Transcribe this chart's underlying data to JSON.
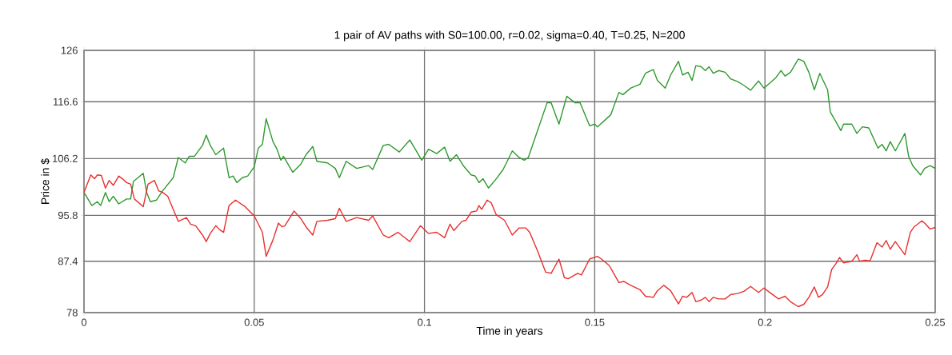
{
  "chart_data": {
    "type": "line",
    "title": "1 pair of AV paths with S0=100.00, r=0.02, sigma=0.40, T=0.25, N=200",
    "xlabel": "Time in years",
    "ylabel": "Price in $",
    "xlim": [
      0,
      0.25
    ],
    "ylim": [
      78,
      126
    ],
    "xticks": [
      0,
      0.05,
      0.1,
      0.15,
      0.2,
      0.25
    ],
    "yticks": [
      78,
      87.4,
      95.8,
      106.2,
      116.6,
      126
    ],
    "grid": true,
    "marker": "none",
    "line_style": "solid",
    "series": [
      {
        "color": "#2e9a2e",
        "x": [
          0,
          0.0023,
          0.0039,
          0.0049,
          0.0063,
          0.0074,
          0.0086,
          0.0102,
          0.0125,
          0.0137,
          0.0145,
          0.0174,
          0.0184,
          0.0195,
          0.0213,
          0.0231,
          0.0262,
          0.0277,
          0.0297,
          0.0309,
          0.0324,
          0.0348,
          0.0359,
          0.0371,
          0.0387,
          0.041,
          0.0426,
          0.0438,
          0.0449,
          0.0465,
          0.0481,
          0.05,
          0.0512,
          0.0524,
          0.0535,
          0.0555,
          0.0567,
          0.0578,
          0.0586,
          0.0613,
          0.0637,
          0.0652,
          0.0672,
          0.0684,
          0.0715,
          0.0738,
          0.075,
          0.077,
          0.0801,
          0.0836,
          0.0848,
          0.0879,
          0.0895,
          0.0926,
          0.0957,
          0.0973,
          0.0992,
          0.1012,
          0.1036,
          0.1059,
          0.1075,
          0.1094,
          0.1114,
          0.1137,
          0.1149,
          0.116,
          0.1172,
          0.1188,
          0.1211,
          0.1231,
          0.1258,
          0.1278,
          0.1293,
          0.1305,
          0.1332,
          0.136,
          0.1372,
          0.1395,
          0.1418,
          0.1442,
          0.1457,
          0.1485,
          0.15,
          0.1508,
          0.1547,
          0.1571,
          0.1583,
          0.1606,
          0.1633,
          0.1649,
          0.1672,
          0.1684,
          0.1707,
          0.1723,
          0.1746,
          0.1758,
          0.1774,
          0.1786,
          0.1797,
          0.1813,
          0.1825,
          0.1836,
          0.1848,
          0.1864,
          0.1883,
          0.1899,
          0.1919,
          0.1938,
          0.1958,
          0.1981,
          0.1997,
          0.2016,
          0.2032,
          0.2047,
          0.2059,
          0.2075,
          0.2098,
          0.2114,
          0.2129,
          0.2145,
          0.2161,
          0.2184,
          0.2192,
          0.2208,
          0.2223,
          0.2231,
          0.2255,
          0.227,
          0.2286,
          0.2305,
          0.2332,
          0.2344,
          0.2356,
          0.2368,
          0.2383,
          0.2411,
          0.2422,
          0.2434,
          0.2457,
          0.2469,
          0.2485,
          0.25
        ],
        "values": [
          100,
          97.6,
          98.3,
          97.6,
          100.0,
          98.3,
          99.3,
          97.9,
          98.8,
          98.8,
          102.0,
          103.5,
          100.0,
          98.3,
          98.6,
          100.3,
          102.7,
          106.4,
          105.4,
          106.6,
          106.6,
          108.6,
          110.5,
          108.6,
          106.9,
          108.1,
          102.7,
          103.0,
          101.8,
          102.7,
          103.0,
          104.7,
          108.1,
          108.8,
          113.5,
          109.3,
          107.9,
          105.9,
          106.6,
          103.7,
          105.2,
          106.9,
          108.4,
          105.7,
          105.4,
          104.4,
          102.7,
          105.7,
          104.4,
          104.9,
          104.2,
          108.6,
          108.8,
          107.4,
          109.6,
          107.9,
          105.9,
          107.9,
          107.1,
          108.3,
          105.7,
          106.9,
          104.9,
          103.2,
          103.0,
          101.8,
          102.5,
          100.8,
          102.5,
          104.2,
          107.6,
          106.4,
          105.9,
          106.4,
          111.3,
          116.4,
          116.4,
          112.5,
          117.6,
          116.4,
          116.4,
          112.2,
          112.5,
          112.0,
          114.2,
          118.3,
          117.9,
          119.1,
          119.8,
          121.8,
          122.5,
          120.5,
          119.1,
          121.5,
          124.0,
          121.5,
          122.0,
          120.5,
          123.2,
          123.0,
          122.3,
          123.0,
          121.8,
          122.3,
          122.0,
          120.8,
          120.3,
          119.6,
          118.7,
          120.4,
          119.1,
          120.1,
          121.0,
          122.3,
          121.3,
          122.0,
          124.4,
          124.0,
          122.0,
          118.8,
          121.8,
          118.8,
          114.7,
          113.0,
          111.3,
          112.5,
          112.5,
          110.8,
          112.0,
          111.8,
          108.1,
          108.8,
          107.6,
          109.3,
          107.6,
          110.8,
          106.6,
          104.9,
          103.2,
          104.4,
          104.9,
          104.4
        ]
      },
      {
        "color": "#e8302e",
        "x": [
          0,
          0.002,
          0.0031,
          0.0039,
          0.0051,
          0.0063,
          0.0074,
          0.0086,
          0.0102,
          0.0113,
          0.0125,
          0.0137,
          0.0148,
          0.0174,
          0.0188,
          0.0207,
          0.0219,
          0.0231,
          0.0246,
          0.0262,
          0.0277,
          0.0301,
          0.0313,
          0.0328,
          0.0348,
          0.0359,
          0.0371,
          0.0387,
          0.0398,
          0.041,
          0.0426,
          0.0445,
          0.0473,
          0.05,
          0.0524,
          0.0535,
          0.0555,
          0.0571,
          0.0582,
          0.059,
          0.0617,
          0.0637,
          0.0652,
          0.0672,
          0.0684,
          0.0715,
          0.0738,
          0.075,
          0.077,
          0.0801,
          0.0836,
          0.0848,
          0.0879,
          0.0895,
          0.0922,
          0.0957,
          0.0988,
          0.1012,
          0.1036,
          0.1059,
          0.1075,
          0.1086,
          0.111,
          0.1122,
          0.1137,
          0.1153,
          0.116,
          0.1168,
          0.1184,
          0.1196,
          0.1211,
          0.1235,
          0.1258,
          0.1278,
          0.1297,
          0.1309,
          0.1332,
          0.1356,
          0.1372,
          0.1395,
          0.1411,
          0.1422,
          0.145,
          0.1461,
          0.1485,
          0.1508,
          0.152,
          0.1543,
          0.1571,
          0.1586,
          0.1606,
          0.1633,
          0.1649,
          0.1672,
          0.1684,
          0.1703,
          0.1723,
          0.1746,
          0.1758,
          0.177,
          0.1786,
          0.1797,
          0.1813,
          0.1825,
          0.1836,
          0.1848,
          0.1864,
          0.1883,
          0.1899,
          0.1919,
          0.1938,
          0.1958,
          0.1981,
          0.1997,
          0.2016,
          0.204,
          0.2059,
          0.2075,
          0.2098,
          0.2114,
          0.2129,
          0.2145,
          0.2157,
          0.2169,
          0.2184,
          0.2196,
          0.2208,
          0.2219,
          0.2231,
          0.2255,
          0.227,
          0.2278,
          0.2294,
          0.2309,
          0.2329,
          0.2344,
          0.2356,
          0.2368,
          0.2383,
          0.2411,
          0.2427,
          0.2438,
          0.2461,
          0.2469,
          0.2485,
          0.25
        ],
        "values": [
          100,
          103.2,
          102.5,
          103.2,
          103.1,
          100.8,
          102.2,
          101.3,
          103.0,
          102.5,
          101.8,
          101.5,
          98.8,
          97.4,
          101.5,
          102.2,
          100.3,
          100.0,
          99.3,
          96.9,
          94.7,
          95.4,
          94.2,
          93.9,
          92.2,
          91.0,
          92.5,
          93.9,
          93.2,
          92.7,
          97.6,
          98.6,
          97.4,
          95.7,
          92.7,
          88.3,
          91.3,
          94.4,
          93.7,
          93.9,
          96.6,
          95.2,
          93.7,
          92.2,
          94.7,
          94.9,
          95.2,
          97.1,
          94.7,
          95.4,
          94.9,
          95.7,
          92.2,
          91.7,
          92.7,
          91.0,
          93.9,
          92.5,
          92.7,
          91.7,
          94.2,
          93.0,
          94.7,
          94.9,
          96.4,
          96.6,
          97.6,
          96.9,
          98.6,
          98.1,
          95.9,
          94.9,
          92.2,
          93.5,
          93.5,
          92.7,
          89.3,
          85.4,
          85.2,
          87.8,
          84.4,
          84.2,
          85.2,
          84.9,
          87.8,
          88.3,
          87.8,
          86.6,
          83.5,
          83.7,
          83.0,
          82.2,
          81.0,
          80.8,
          82.0,
          83.0,
          82.0,
          79.6,
          81.0,
          80.8,
          81.7,
          80.0,
          80.3,
          80.8,
          80.0,
          80.8,
          80.5,
          80.5,
          81.3,
          81.5,
          81.9,
          82.8,
          81.7,
          82.5,
          81.6,
          80.5,
          81.0,
          80.0,
          79.1,
          79.5,
          80.8,
          82.7,
          80.8,
          81.3,
          82.7,
          85.9,
          86.9,
          88.1,
          87.1,
          87.4,
          88.6,
          87.4,
          87.6,
          87.5,
          90.8,
          90.0,
          91.2,
          89.6,
          91.0,
          88.6,
          92.7,
          93.7,
          94.8,
          94.4,
          93.3,
          93.6
        ]
      }
    ]
  }
}
